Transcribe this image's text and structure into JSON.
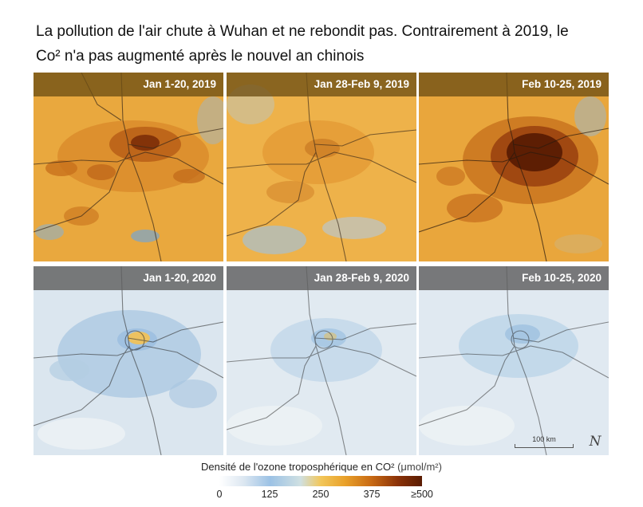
{
  "title": {
    "line1": "La pollution de l'air chute à Wuhan et ne rebondit pas. Contrairement à 2019, le",
    "line2": "Co² n'a pas augmenté après le nouvel an chinois"
  },
  "panels": [
    {
      "label": "Jan 1-20, 2019",
      "year": "2019",
      "theme": "pollution-moderate"
    },
    {
      "label": "Jan 28-Feb 9, 2019",
      "year": "2019",
      "theme": "pollution-low"
    },
    {
      "label": "Feb 10-25, 2019",
      "year": "2019",
      "theme": "pollution-high"
    },
    {
      "label": "Jan 1-20, 2020",
      "year": "2020",
      "theme": "clean-small-hotspot"
    },
    {
      "label": "Jan 28-Feb 9, 2020",
      "year": "2020",
      "theme": "clean"
    },
    {
      "label": "Feb 10-25, 2020",
      "year": "2020",
      "theme": "clean"
    }
  ],
  "scale_bar": {
    "label": "100 km"
  },
  "north_arrow": {
    "glyph": "N",
    "icon": "north-arrow-icon"
  },
  "legend": {
    "title": "Densité de l'ozone troposphérique en CO²",
    "unit": "(μmol/m²)",
    "ticks": [
      "0",
      "125",
      "250",
      "375",
      "≥500"
    ],
    "color_stops": [
      "#ffffff",
      "#9cc2e5",
      "#f2c75a",
      "#e9a12a",
      "#8b3208",
      "#5a1c03"
    ]
  },
  "colors": {
    "band_2019": "#7a5a1e",
    "band_2020": "#6b6b6b",
    "orange_base": "#e9a43a",
    "blue_base": "#dce7f1",
    "hotspot_dark": "#6a2408"
  }
}
